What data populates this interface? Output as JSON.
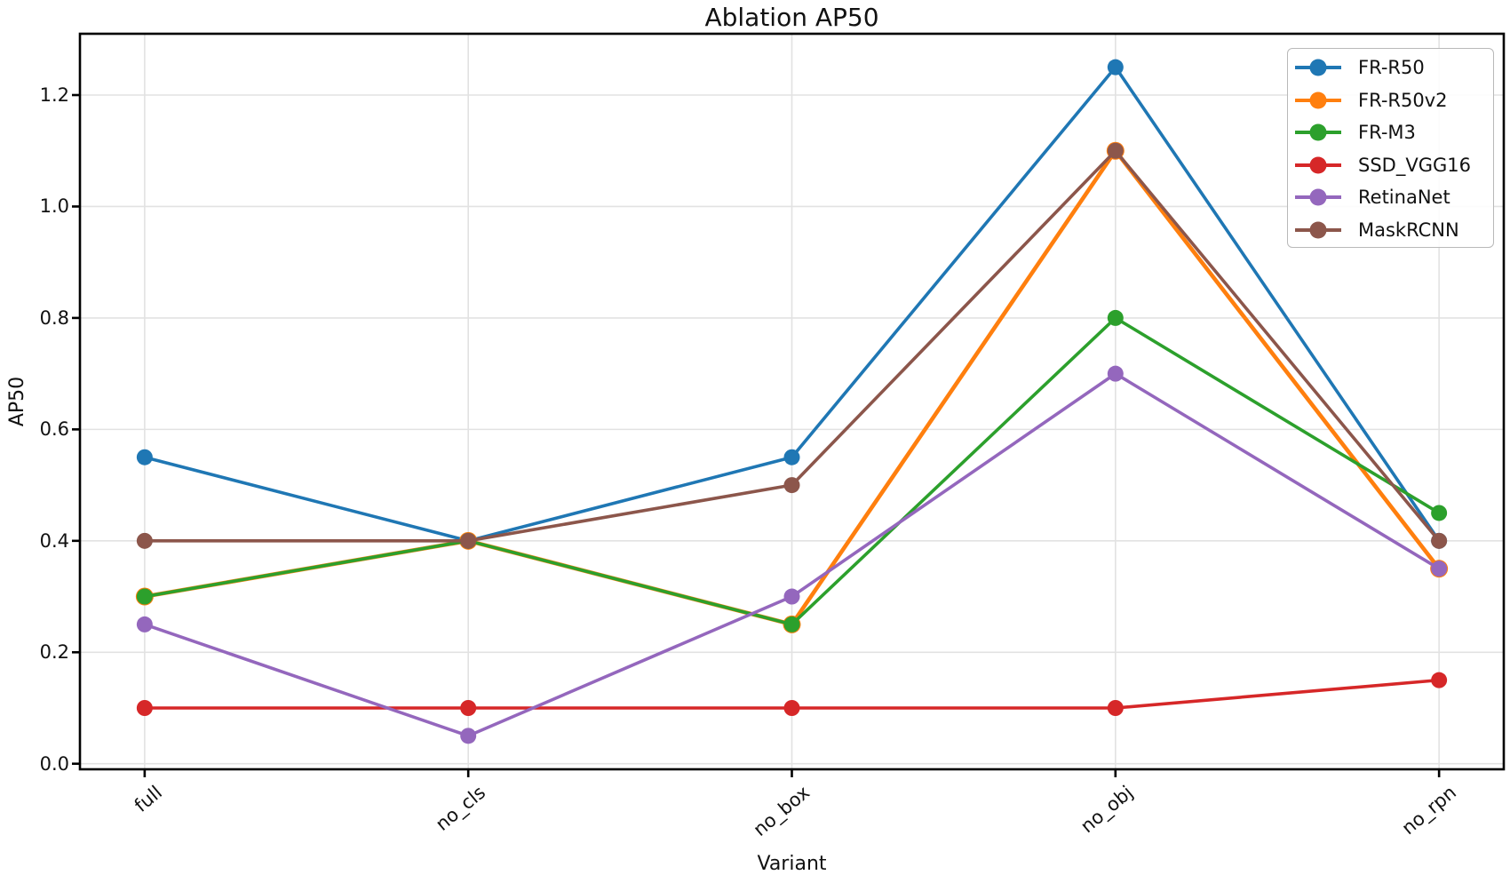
{
  "figure": {
    "background": "#ffffff",
    "text_color": "#111111",
    "grid_color": "#e2e2e2",
    "spine_color": "#000000"
  },
  "chart_data": {
    "type": "line",
    "title": "Ablation AP50",
    "xlabel": "Variant",
    "ylabel": "AP50",
    "categories": [
      "full",
      "no_cls",
      "no_box",
      "no_obj",
      "no_rpn"
    ],
    "series": [
      {
        "name": "FR-R50",
        "color": "#1f77b4",
        "values": [
          0.55,
          0.4,
          0.55,
          1.25,
          0.4
        ]
      },
      {
        "name": "FR-R50v2",
        "color": "#ff7f0e",
        "values": [
          0.3,
          0.4,
          0.25,
          1.1,
          0.35
        ]
      },
      {
        "name": "FR-M3",
        "color": "#2ca02c",
        "values": [
          0.3,
          0.4,
          0.25,
          0.8,
          0.45
        ]
      },
      {
        "name": "SSD_VGG16",
        "color": "#d62728",
        "values": [
          0.1,
          0.1,
          0.1,
          0.1,
          0.15
        ]
      },
      {
        "name": "RetinaNet",
        "color": "#9467bd",
        "values": [
          0.25,
          0.05,
          0.3,
          0.7,
          0.35
        ]
      },
      {
        "name": "MaskRCNN",
        "color": "#8c564b",
        "values": [
          0.4,
          0.4,
          0.5,
          1.1,
          0.4
        ]
      }
    ],
    "yticks": [
      0.0,
      0.2,
      0.4,
      0.6,
      0.8,
      1.0,
      1.2
    ],
    "ylim": [
      -0.01,
      1.31
    ],
    "xlim": [
      -0.2,
      4.2
    ],
    "grid": true,
    "marker": "o",
    "legend_position": "upper right"
  }
}
